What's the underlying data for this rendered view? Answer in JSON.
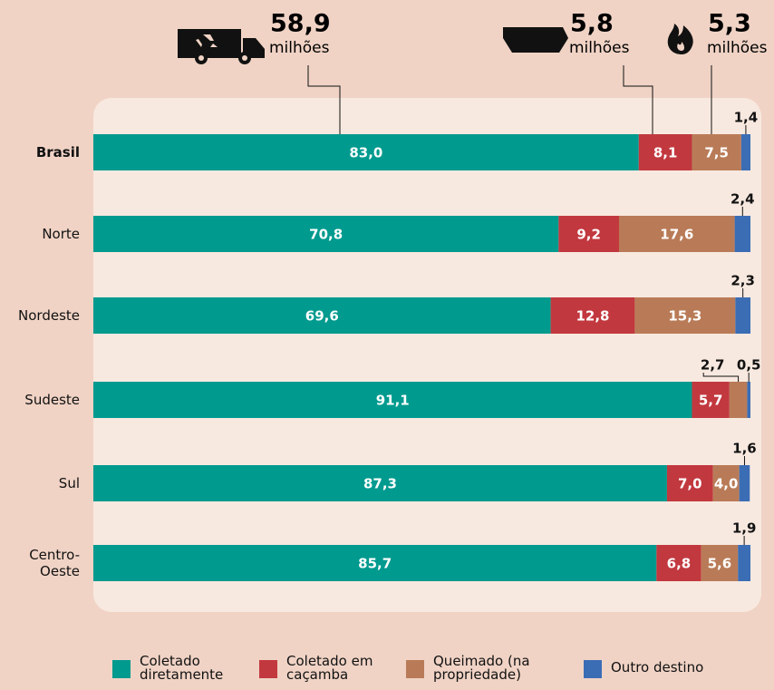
{
  "chart_data": {
    "type": "stacked-bar-horizontal",
    "categories": [
      "Brasil",
      "Norte",
      "Nordeste",
      "Sudeste",
      "Sul",
      "Centro-Oeste"
    ],
    "xlim": [
      0,
      100
    ],
    "series": [
      {
        "name": "Coletado diretamente",
        "color": "#009a8e",
        "values": [
          83.0,
          70.8,
          69.6,
          91.1,
          87.3,
          85.7
        ],
        "value_labels": [
          "83,0",
          "70,8",
          "69,6",
          "91,1",
          "87,3",
          "85,7"
        ]
      },
      {
        "name": "Coletado em caçamba",
        "color": "#c2383f",
        "values": [
          8.1,
          9.2,
          12.8,
          5.7,
          7.0,
          6.8
        ],
        "value_labels": [
          "8,1",
          "9,2",
          "12,8",
          "5,7",
          "7,0",
          "6,8"
        ]
      },
      {
        "name": "Queimado (na propriedade)",
        "color": "#b97b57",
        "values": [
          7.5,
          17.6,
          15.3,
          2.7,
          4.0,
          5.6
        ],
        "value_labels": [
          "7,5",
          "17,6",
          "15,3",
          "2,7",
          "4,0",
          "5,6"
        ]
      },
      {
        "name": "Outro destino",
        "color": "#3b6db5",
        "values": [
          1.4,
          2.4,
          2.3,
          0.5,
          1.6,
          1.9
        ],
        "value_labels": [
          "1,4",
          "2,4",
          "2,3",
          "0,5",
          "1,6",
          "1,9"
        ]
      }
    ],
    "annotations": [
      {
        "value": 58.9,
        "label": "58,9",
        "unit": "milhões"
      },
      {
        "value": 5.8,
        "label": "5,8",
        "unit": "milhões"
      },
      {
        "value": 5.3,
        "label": "5,3",
        "unit": "milhões"
      }
    ]
  }
}
